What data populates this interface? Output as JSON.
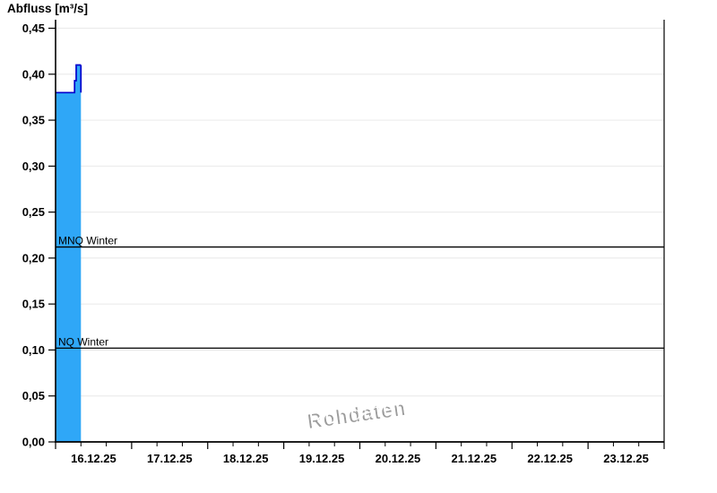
{
  "chart_data": {
    "type": "area",
    "title": "Abfluss [m³/s]",
    "xlabel": "",
    "ylabel": "Abfluss [m³/s]",
    "watermark": "Rohdaten",
    "ylim": [
      0,
      0.45
    ],
    "ytick_step": 0.05,
    "ytick_labels": [
      "0,00",
      "0,05",
      "0,10",
      "0,15",
      "0,20",
      "0,25",
      "0,30",
      "0,35",
      "0,40",
      "0,45"
    ],
    "x_categories": [
      "16.12.25",
      "17.12.25",
      "18.12.25",
      "19.12.25",
      "20.12.25",
      "21.12.25",
      "22.12.25",
      "23.12.25"
    ],
    "x_minor_ticks_per_day": 3,
    "x_total_hours": 192,
    "grid": true,
    "legend": false,
    "series": [
      {
        "name": "Abfluss Rohdaten",
        "unit": "m³/s",
        "points_hours_value": [
          [
            0.0,
            0.38
          ],
          [
            6.0,
            0.38
          ],
          [
            6.0,
            0.393
          ],
          [
            6.5,
            0.393
          ],
          [
            6.5,
            0.41
          ],
          [
            8.0,
            0.41
          ]
        ],
        "fill_color": "#2fa7f7",
        "line_color": "#0000cc"
      }
    ],
    "reference_lines": [
      {
        "label": "MNQ Winter",
        "value": 0.212,
        "color": "#000000"
      },
      {
        "label": "NQ Winter",
        "value": 0.102,
        "color": "#000000"
      }
    ],
    "colors": {
      "grid": "#ececec",
      "axis": "#000000",
      "background": "#ffffff",
      "watermark_shadow": "#9c9c9c",
      "watermark_face": "#ffffff"
    }
  }
}
